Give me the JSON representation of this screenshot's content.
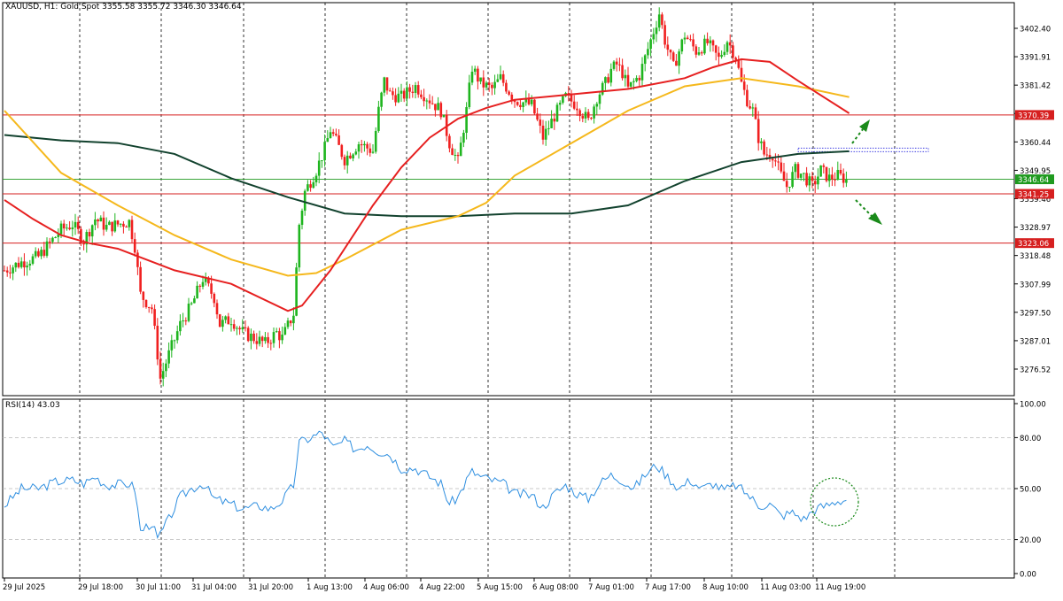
{
  "header": {
    "symbol": "XAUUSD, H1:",
    "description": "Gold Spot",
    "ohlc": "3355.58 3355.72 3346.30 3346.64"
  },
  "rsi_header": {
    "label": "RSI(14) 43.03"
  },
  "colors": {
    "bull": "#1fb51f",
    "bear": "#f02020",
    "ma_fast": "#e62020",
    "ma_mid": "#f5b81c",
    "ma_slow": "#12422e",
    "rsi": "#2f8fe0",
    "level": "#d61f1f",
    "price_line": "#1f9a1f",
    "annotation": "#1a8a1a"
  },
  "chart_data": [
    {
      "type": "candlestick",
      "title": "XAUUSD, H1: Gold Spot",
      "y_ticks": [
        "3402.40",
        "3391.91",
        "3381.42",
        "3370.93",
        "3360.44",
        "3349.95",
        "3339.46",
        "3328.97",
        "3318.48",
        "3307.99",
        "3297.50",
        "3287.01",
        "3276.52"
      ],
      "ylim": [
        3266,
        3408
      ],
      "x_ticks": [
        "29 Jul 2025",
        "29 Jul 18:00",
        "30 Jul 11:00",
        "31 Jul 04:00",
        "31 Jul 20:00",
        "1 Aug 13:00",
        "4 Aug 06:00",
        "4 Aug 22:00",
        "5 Aug 15:00",
        "6 Aug 08:00",
        "7 Aug 01:00",
        "7 Aug 17:00",
        "8 Aug 10:00",
        "11 Aug 03:00",
        "11 Aug 19:00"
      ],
      "levels": [
        {
          "value": 3370.39,
          "label": "3370.39"
        },
        {
          "value": 3341.25,
          "label": "3341.25"
        },
        {
          "value": 3323.06,
          "label": "3323.06"
        }
      ],
      "current_price": {
        "value": 3346.64,
        "label": "3346.64"
      },
      "resistance_zone": {
        "value": 3357.5
      },
      "keypoints": [
        [
          0,
          3313
        ],
        [
          6,
          3316
        ],
        [
          12,
          3318
        ],
        [
          16,
          3323
        ],
        [
          20,
          3328
        ],
        [
          24,
          3330
        ],
        [
          28,
          3324
        ],
        [
          32,
          3332
        ],
        [
          36,
          3329
        ],
        [
          40,
          3330
        ],
        [
          44,
          3331
        ],
        [
          46,
          3322
        ],
        [
          48,
          3304
        ],
        [
          52,
          3299
        ],
        [
          54,
          3282
        ],
        [
          55,
          3273
        ],
        [
          58,
          3282
        ],
        [
          62,
          3293
        ],
        [
          66,
          3300
        ],
        [
          70,
          3310
        ],
        [
          74,
          3303
        ],
        [
          76,
          3293
        ],
        [
          80,
          3295
        ],
        [
          84,
          3290
        ],
        [
          88,
          3288
        ],
        [
          92,
          3286
        ],
        [
          96,
          3290
        ],
        [
          98,
          3288
        ],
        [
          102,
          3297
        ],
        [
          104,
          3330
        ],
        [
          106,
          3342
        ],
        [
          110,
          3350
        ],
        [
          113,
          3358
        ],
        [
          115,
          3365
        ],
        [
          120,
          3354
        ],
        [
          125,
          3360
        ],
        [
          130,
          3357
        ],
        [
          132,
          3372
        ],
        [
          134,
          3383
        ],
        [
          136,
          3378
        ],
        [
          140,
          3377
        ],
        [
          145,
          3381
        ],
        [
          150,
          3376
        ],
        [
          154,
          3372
        ],
        [
          157,
          3360
        ],
        [
          160,
          3353
        ],
        [
          163,
          3372
        ],
        [
          165,
          3388
        ],
        [
          168,
          3382
        ],
        [
          172,
          3380
        ],
        [
          175,
          3384
        ],
        [
          180,
          3376
        ],
        [
          186,
          3374
        ],
        [
          190,
          3362
        ],
        [
          194,
          3370
        ],
        [
          198,
          3377
        ],
        [
          202,
          3374
        ],
        [
          206,
          3368
        ],
        [
          209,
          3377
        ],
        [
          212,
          3382
        ],
        [
          214,
          3387
        ],
        [
          216,
          3389
        ],
        [
          218,
          3386
        ],
        [
          220,
          3380
        ],
        [
          224,
          3385
        ],
        [
          228,
          3398
        ],
        [
          231,
          3408
        ],
        [
          233,
          3398
        ],
        [
          236,
          3388
        ],
        [
          240,
          3400
        ],
        [
          244,
          3394
        ],
        [
          248,
          3397
        ],
        [
          252,
          3391
        ],
        [
          255,
          3398
        ],
        [
          258,
          3392
        ],
        [
          260,
          3382
        ],
        [
          262,
          3376
        ],
        [
          264,
          3372
        ],
        [
          266,
          3362
        ],
        [
          268,
          3356
        ],
        [
          271,
          3356
        ],
        [
          274,
          3348
        ],
        [
          276,
          3344
        ],
        [
          279,
          3350
        ],
        [
          282,
          3348
        ],
        [
          285,
          3344
        ],
        [
          288,
          3350
        ],
        [
          291,
          3347
        ],
        [
          294,
          3348
        ],
        [
          297,
          3346.64
        ]
      ],
      "series": [
        {
          "name": "",
          "kind": "ma_slow",
          "points": [
            [
              0,
              3363
            ],
            [
              20,
              3361
            ],
            [
              40,
              3360
            ],
            [
              60,
              3356
            ],
            [
              80,
              3347
            ],
            [
              100,
              3340
            ],
            [
              120,
              3334
            ],
            [
              140,
              3333
            ],
            [
              160,
              3333
            ],
            [
              180,
              3334
            ],
            [
              200,
              3334
            ],
            [
              220,
              3337
            ],
            [
              240,
              3346
            ],
            [
              260,
              3353
            ],
            [
              280,
              3356
            ],
            [
              298,
              3357
            ]
          ]
        },
        {
          "name": "",
          "kind": "ma_mid",
          "points": [
            [
              0,
              3372
            ],
            [
              20,
              3349
            ],
            [
              40,
              3337
            ],
            [
              60,
              3326
            ],
            [
              80,
              3317
            ],
            [
              100,
              3311
            ],
            [
              110,
              3312
            ],
            [
              120,
              3317
            ],
            [
              140,
              3328
            ],
            [
              160,
              3333
            ],
            [
              170,
              3338
            ],
            [
              180,
              3348
            ],
            [
              200,
              3360
            ],
            [
              220,
              3372
            ],
            [
              240,
              3381
            ],
            [
              260,
              3384
            ],
            [
              280,
              3381
            ],
            [
              298,
              3377
            ]
          ]
        },
        {
          "name": "",
          "kind": "ma_fast",
          "points": [
            [
              0,
              3339
            ],
            [
              10,
              3332
            ],
            [
              20,
              3326
            ],
            [
              30,
              3323
            ],
            [
              40,
              3321
            ],
            [
              50,
              3317
            ],
            [
              60,
              3313
            ],
            [
              80,
              3308
            ],
            [
              100,
              3298
            ],
            [
              105,
              3300
            ],
            [
              115,
              3313
            ],
            [
              130,
              3337
            ],
            [
              140,
              3351
            ],
            [
              150,
              3362
            ],
            [
              160,
              3369
            ],
            [
              170,
              3373
            ],
            [
              180,
              3376
            ],
            [
              200,
              3378
            ],
            [
              220,
              3380
            ],
            [
              240,
              3384
            ],
            [
              250,
              3388
            ],
            [
              260,
              3391
            ],
            [
              270,
              3390
            ],
            [
              280,
              3383
            ],
            [
              298,
              3371
            ]
          ]
        }
      ]
    },
    {
      "type": "line",
      "title": "RSI(14) 43.03",
      "y_ticks": [
        "100.00",
        "80.00",
        "50.00",
        "20.00",
        "0.00"
      ],
      "ylim": [
        0,
        100
      ],
      "guides": [
        80,
        50,
        20
      ],
      "keypoints": [
        [
          0,
          40
        ],
        [
          6,
          50
        ],
        [
          12,
          50
        ],
        [
          18,
          54
        ],
        [
          24,
          55
        ],
        [
          28,
          53
        ],
        [
          32,
          57
        ],
        [
          36,
          52
        ],
        [
          44,
          53
        ],
        [
          46,
          50
        ],
        [
          48,
          25
        ],
        [
          52,
          30
        ],
        [
          54,
          20
        ],
        [
          58,
          32
        ],
        [
          62,
          45
        ],
        [
          66,
          50
        ],
        [
          70,
          53
        ],
        [
          74,
          44
        ],
        [
          78,
          42
        ],
        [
          84,
          38
        ],
        [
          90,
          40
        ],
        [
          94,
          38
        ],
        [
          98,
          43
        ],
        [
          102,
          52
        ],
        [
          104,
          77
        ],
        [
          108,
          80
        ],
        [
          112,
          83
        ],
        [
          116,
          74
        ],
        [
          120,
          78
        ],
        [
          124,
          73
        ],
        [
          128,
          76
        ],
        [
          132,
          72
        ],
        [
          136,
          70
        ],
        [
          140,
          62
        ],
        [
          145,
          62
        ],
        [
          150,
          57
        ],
        [
          154,
          53
        ],
        [
          157,
          41
        ],
        [
          160,
          45
        ],
        [
          163,
          55
        ],
        [
          165,
          60
        ],
        [
          168,
          57
        ],
        [
          172,
          55
        ],
        [
          176,
          53
        ],
        [
          180,
          47
        ],
        [
          186,
          46
        ],
        [
          190,
          39
        ],
        [
          194,
          47
        ],
        [
          198,
          52
        ],
        [
          202,
          47
        ],
        [
          206,
          44
        ],
        [
          210,
          53
        ],
        [
          214,
          58
        ],
        [
          218,
          55
        ],
        [
          222,
          50
        ],
        [
          226,
          58
        ],
        [
          230,
          64
        ],
        [
          234,
          57
        ],
        [
          238,
          50
        ],
        [
          242,
          55
        ],
        [
          246,
          50
        ],
        [
          250,
          53
        ],
        [
          254,
          49
        ],
        [
          258,
          52
        ],
        [
          262,
          47
        ],
        [
          266,
          40
        ],
        [
          270,
          41
        ],
        [
          274,
          34
        ],
        [
          278,
          36
        ],
        [
          282,
          32
        ],
        [
          286,
          38
        ],
        [
          290,
          40
        ],
        [
          294,
          43
        ],
        [
          297,
          43.03
        ]
      ]
    }
  ]
}
